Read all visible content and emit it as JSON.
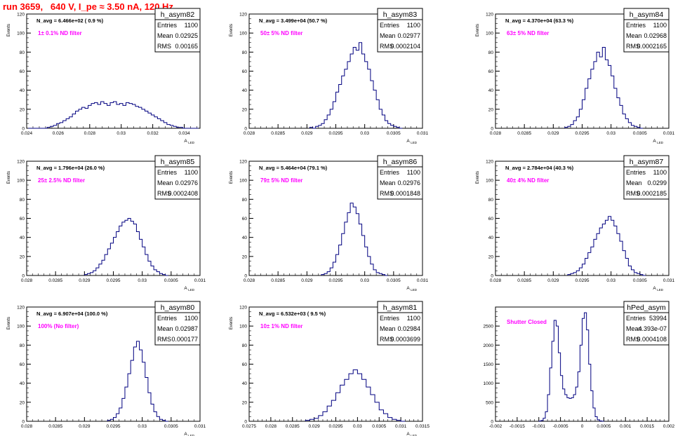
{
  "page": {
    "title": "run 3659,   640 V, I_pe ≈ 3.50 nA, 120 Hz"
  },
  "colors": {
    "histogram": "#000080",
    "annotation_magenta": "#ff00ff",
    "title_red": "#ff0000",
    "axis": "#000000",
    "background": "#ffffff"
  },
  "chart_data": [
    {
      "type": "histogram",
      "name": "h_asym82",
      "ylabel": "Events",
      "xlabel": "A_LED",
      "navg": "N_avg = 6.466e+02 ( 0.9 %)",
      "filter": "1± 0.1% ND filter",
      "stats": {
        "entries": "1100",
        "mean": "0.02925",
        "rms": "0.00165"
      },
      "xlim": [
        0.024,
        0.035
      ],
      "ylim": [
        0,
        120
      ],
      "xticks": [
        0.024,
        0.026,
        0.028,
        0.03,
        0.032,
        0.034
      ],
      "xticklabels": [
        "0.024",
        "0.026",
        "0.028",
        "0.03",
        "0.032",
        "0.034"
      ],
      "yticks": [
        0,
        20,
        40,
        60,
        80,
        100,
        120
      ],
      "bins": {
        "start": 0.0241,
        "width": 0.0002,
        "counts": [
          0,
          0,
          0,
          0,
          0,
          0,
          1,
          2,
          3,
          5,
          6,
          8,
          10,
          12,
          15,
          18,
          20,
          22,
          21,
          24,
          26,
          27,
          25,
          28,
          26,
          24,
          27,
          28,
          25,
          26,
          24,
          27,
          26,
          25,
          23,
          22,
          20,
          18,
          16,
          14,
          12,
          10,
          8,
          6,
          4,
          3,
          2,
          1,
          1,
          0,
          0,
          0,
          0,
          0
        ]
      }
    },
    {
      "type": "histogram",
      "name": "h_asym83",
      "ylabel": "Events",
      "xlabel": "A_LED",
      "navg": "N_avg = 3.499e+04 (50.7 %)",
      "filter": "50± 5% ND filter",
      "stats": {
        "entries": "1100",
        "mean": "0.02977",
        "rms": "0.0002104"
      },
      "xlim": [
        0.028,
        0.031
      ],
      "ylim": [
        0,
        120
      ],
      "xticks": [
        0.028,
        0.0285,
        0.029,
        0.0295,
        0.03,
        0.0305,
        0.031
      ],
      "xticklabels": [
        "0.028",
        "0.0285",
        "0.029",
        "0.0295",
        "0.03",
        "0.0305",
        "0.031"
      ],
      "yticks": [
        0,
        20,
        40,
        60,
        80,
        100,
        120
      ],
      "bins": {
        "start": 0.02905,
        "width": 5e-05,
        "counts": [
          1,
          0,
          2,
          3,
          5,
          9,
          14,
          20,
          28,
          38,
          46,
          55,
          62,
          70,
          78,
          85,
          82,
          90,
          78,
          70,
          62,
          50,
          40,
          30,
          20,
          14,
          8,
          5,
          3,
          2,
          1,
          0
        ]
      }
    },
    {
      "type": "histogram",
      "name": "h_asym84",
      "ylabel": "Events",
      "xlabel": "A_LED",
      "navg": "N_avg = 4.370e+04 (63.3 %)",
      "filter": "63± 5% ND filter",
      "stats": {
        "entries": "1100",
        "mean": "0.02968",
        "rms": "0.0002165"
      },
      "xlim": [
        0.028,
        0.031
      ],
      "ylim": [
        0,
        120
      ],
      "xticks": [
        0.028,
        0.0285,
        0.029,
        0.0295,
        0.03,
        0.0305,
        0.031
      ],
      "xticklabels": [
        "0.028",
        "0.0285",
        "0.029",
        "0.0295",
        "0.03",
        "0.0305",
        "0.031"
      ],
      "yticks": [
        0,
        20,
        40,
        60,
        80,
        100,
        120
      ],
      "bins": {
        "start": 0.0292,
        "width": 5e-05,
        "counts": [
          1,
          2,
          4,
          8,
          12,
          20,
          30,
          42,
          52,
          62,
          70,
          80,
          75,
          85,
          72,
          66,
          55,
          42,
          32,
          24,
          15,
          10,
          6,
          3,
          2,
          1,
          0
        ]
      }
    },
    {
      "type": "histogram",
      "name": "h_asym85",
      "ylabel": "Events",
      "xlabel": "A_LED",
      "navg": "N_avg = 1.796e+04 (26.0 %)",
      "filter": "25± 2.5% ND filter",
      "stats": {
        "entries": "1100",
        "mean": "0.02976",
        "rms": "0.0002408"
      },
      "xlim": [
        0.028,
        0.031
      ],
      "ylim": [
        0,
        120
      ],
      "xticks": [
        0.028,
        0.0285,
        0.029,
        0.0295,
        0.03,
        0.0305,
        0.031
      ],
      "xticklabels": [
        "0.028",
        "0.0285",
        "0.029",
        "0.0295",
        "0.03",
        "0.0305",
        "0.031"
      ],
      "yticks": [
        0,
        20,
        40,
        60,
        80,
        100,
        120
      ],
      "bins": {
        "start": 0.029,
        "width": 5e-05,
        "counts": [
          1,
          2,
          3,
          5,
          8,
          12,
          16,
          22,
          28,
          34,
          40,
          46,
          52,
          56,
          58,
          60,
          57,
          54,
          46,
          38,
          30,
          22,
          15,
          10,
          6,
          4,
          2,
          1,
          0
        ]
      }
    },
    {
      "type": "histogram",
      "name": "h_asym86",
      "ylabel": "Events",
      "xlabel": "A_LED",
      "navg": "N_avg = 5.464e+04 (79.1 %)",
      "filter": "79± 5% ND filter",
      "stats": {
        "entries": "1100",
        "mean": "0.02976",
        "rms": "0.0001848"
      },
      "xlim": [
        0.028,
        0.031
      ],
      "ylim": [
        0,
        120
      ],
      "xticks": [
        0.028,
        0.0285,
        0.029,
        0.0295,
        0.03,
        0.0305,
        0.031
      ],
      "xticklabels": [
        "0.028",
        "0.0285",
        "0.029",
        "0.0295",
        "0.03",
        "0.0305",
        "0.031"
      ],
      "yticks": [
        0,
        20,
        40,
        60,
        80,
        100,
        120
      ],
      "bins": {
        "start": 0.02925,
        "width": 5e-05,
        "counts": [
          1,
          2,
          4,
          8,
          14,
          22,
          32,
          44,
          56,
          66,
          76,
          72,
          65,
          54,
          42,
          30,
          20,
          12,
          6,
          3,
          2,
          1,
          0
        ]
      }
    },
    {
      "type": "histogram",
      "name": "h_asym87",
      "ylabel": "Events",
      "xlabel": "A_LED",
      "navg": "N_avg = 2.784e+04 (40.3 %)",
      "filter": "40± 4% ND filter",
      "stats": {
        "entries": "1100",
        "mean": "0.0299",
        "rms": "0.0002185"
      },
      "xlim": [
        0.028,
        0.031
      ],
      "ylim": [
        0,
        120
      ],
      "xticks": [
        0.028,
        0.0285,
        0.029,
        0.0295,
        0.03,
        0.0305,
        0.031
      ],
      "xticklabels": [
        "0.028",
        "0.0285",
        "0.029",
        "0.0295",
        "0.03",
        "0.0305",
        "0.031"
      ],
      "yticks": [
        0,
        20,
        40,
        60,
        80,
        100,
        120
      ],
      "bins": {
        "start": 0.02925,
        "width": 5e-05,
        "counts": [
          1,
          2,
          3,
          5,
          8,
          12,
          18,
          24,
          30,
          38,
          44,
          50,
          54,
          58,
          62,
          58,
          52,
          44,
          36,
          26,
          18,
          10,
          6,
          3,
          2,
          1,
          0
        ]
      }
    },
    {
      "type": "histogram",
      "name": "h_asym80",
      "ylabel": "Events",
      "xlabel": "A_LED",
      "navg": "N_avg = 6.907e+04 (100.0 %)",
      "filter": "100% (No filter)",
      "stats": {
        "entries": "1100",
        "mean": "0.02987",
        "rms": "0.000177"
      },
      "xlim": [
        0.028,
        0.031
      ],
      "ylim": [
        0,
        120
      ],
      "xticks": [
        0.028,
        0.0285,
        0.029,
        0.0295,
        0.03,
        0.0305,
        0.031
      ],
      "xticklabels": [
        "0.028",
        "0.0285",
        "0.029",
        "0.0295",
        "0.03",
        "0.0305",
        "0.031"
      ],
      "yticks": [
        0,
        20,
        40,
        60,
        80,
        100,
        120
      ],
      "bins": {
        "start": 0.0294,
        "width": 5e-05,
        "counts": [
          1,
          2,
          4,
          8,
          14,
          24,
          36,
          50,
          64,
          78,
          84,
          75,
          62,
          46,
          30,
          18,
          10,
          5,
          2,
          1,
          0
        ]
      }
    },
    {
      "type": "histogram",
      "name": "h_asym81",
      "ylabel": "Events",
      "xlabel": "A_LED",
      "navg": "N_avg = 6.532e+03 ( 9.5 %)",
      "filter": "10± 1% ND filter",
      "stats": {
        "entries": "1100",
        "mean": "0.02984",
        "rms": "0.0003699"
      },
      "xlim": [
        0.0275,
        0.0315
      ],
      "ylim": [
        0,
        120
      ],
      "xticks": [
        0.0275,
        0.028,
        0.0285,
        0.029,
        0.0295,
        0.03,
        0.0305,
        0.031,
        0.0315
      ],
      "xticklabels": [
        "0.0275",
        "0.028",
        "0.0285",
        "0.029",
        "0.0295",
        "0.03",
        "0.0305",
        "0.031",
        "0.0315"
      ],
      "yticks": [
        0,
        20,
        40,
        60,
        80,
        100,
        120
      ],
      "bins": {
        "start": 0.0288,
        "width": 0.0001,
        "counts": [
          1,
          2,
          3,
          6,
          10,
          16,
          22,
          30,
          38,
          44,
          50,
          54,
          50,
          44,
          36,
          28,
          20,
          12,
          8,
          4,
          2,
          1,
          0
        ]
      }
    },
    {
      "type": "histogram",
      "name": "hPed_asym",
      "ylabel": "",
      "xlabel": "",
      "navg": "",
      "filter": "Shutter Closed",
      "stats": {
        "entries": "53994",
        "mean": "-4.393e-07",
        "rms": "0.0004108"
      },
      "xlim": [
        -0.002,
        0.002
      ],
      "ylim": [
        0,
        3000
      ],
      "xticks": [
        -0.002,
        -0.0015,
        -0.001,
        -0.0005,
        0,
        0.0005,
        0.001,
        0.0015,
        0.002
      ],
      "xticklabels": [
        "-0.002",
        "-0.0015",
        "-0.001",
        "-0.0005",
        "0",
        "0.0005",
        "0.001",
        "0.0015",
        "0.002"
      ],
      "yticks": [
        0,
        500,
        1000,
        1500,
        2000,
        2500
      ],
      "bins": {
        "start": -0.001,
        "width": 5e-05,
        "counts": [
          5,
          20,
          80,
          250,
          700,
          1400,
          2100,
          2650,
          2500,
          1800,
          1200,
          850,
          700,
          620,
          600,
          620,
          700,
          900,
          1300,
          2000,
          2700,
          2850,
          2400,
          1500,
          800,
          350,
          120,
          40,
          10,
          3
        ]
      }
    }
  ]
}
